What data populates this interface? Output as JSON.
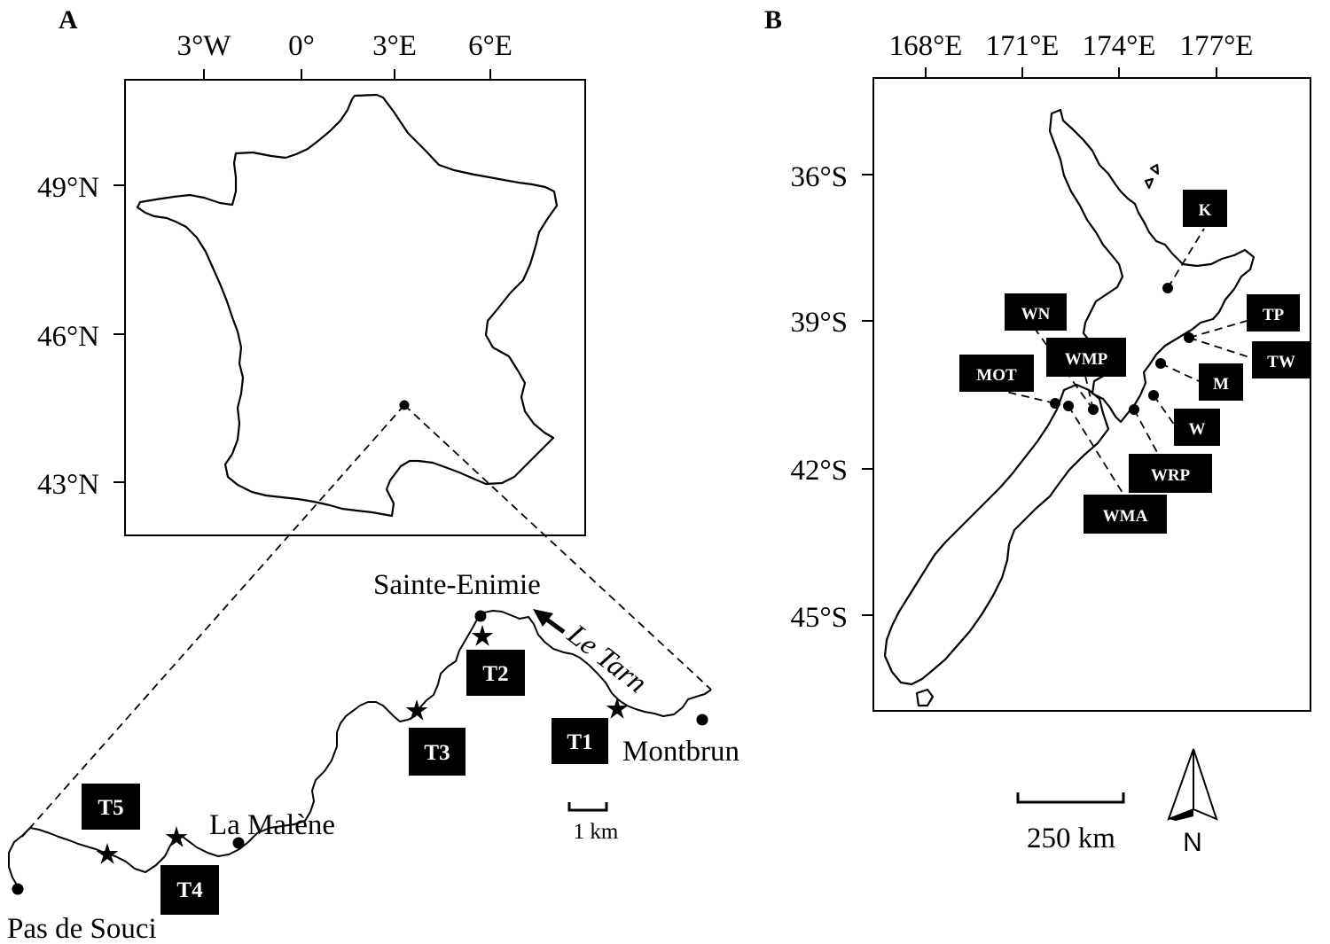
{
  "panel_a": {
    "letter": "A",
    "lon_ticks": [
      "3°W",
      "0°",
      "3°E",
      "6°E"
    ],
    "lat_ticks": [
      "49°N",
      "46°N",
      "43°N"
    ],
    "places": {
      "sainte_enimie": "Sainte-Enimie",
      "montbrun": "Montbrun",
      "la_malene": "La Malène",
      "pas_de_souci": "Pas de Souci"
    },
    "river": "Le Tarn",
    "sites": [
      "T1",
      "T2",
      "T3",
      "T4",
      "T5"
    ],
    "scale_label": "1 km"
  },
  "panel_b": {
    "letter": "B",
    "lon_ticks": [
      "168°E",
      "171°E",
      "174°E",
      "177°E"
    ],
    "lat_ticks": [
      "36°S",
      "39°S",
      "42°S",
      "45°S"
    ],
    "sites": [
      "K",
      "WN",
      "TP",
      "WMP",
      "TW",
      "MOT",
      "M",
      "W",
      "WRP",
      "WMA"
    ],
    "scale_label": "250 km",
    "north_label": "N"
  }
}
